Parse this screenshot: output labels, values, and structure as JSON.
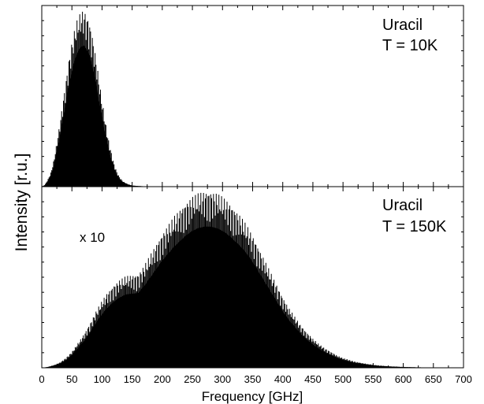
{
  "chart_data": {
    "type": "line",
    "ylabel": "Intensity [r.u.]",
    "xlabel": "Frequency [GHz]",
    "xlim": [
      0,
      700
    ],
    "xticks": [
      0,
      50,
      100,
      150,
      200,
      250,
      300,
      350,
      400,
      450,
      500,
      550,
      600,
      650,
      700
    ],
    "panels": [
      {
        "name": "top",
        "label_line1": "Uracil",
        "label_line2": "T = 10K",
        "annotation": "",
        "ylim": [
          0,
          1.0
        ],
        "series": [
          {
            "x": [
              0,
              5,
              10,
              15,
              20,
              25,
              30,
              35,
              40,
              45,
              50,
              55,
              60,
              65,
              70,
              75,
              80,
              85,
              90,
              95,
              100,
              105,
              110,
              115,
              120,
              125,
              130,
              135,
              140,
              145,
              150,
              160,
              170,
              180,
              190,
              200,
              700
            ],
            "y": [
              0.0,
              0.01,
              0.04,
              0.08,
              0.15,
              0.25,
              0.36,
              0.48,
              0.6,
              0.72,
              0.82,
              0.9,
              0.96,
              0.99,
              1.0,
              0.97,
              0.92,
              0.84,
              0.73,
              0.61,
              0.49,
              0.38,
              0.28,
              0.2,
              0.13,
              0.08,
              0.05,
              0.03,
              0.02,
              0.012,
              0.007,
              0.004,
              0.002,
              0.001,
              0.0005,
              0.0,
              0.0
            ]
          }
        ]
      },
      {
        "name": "bottom",
        "label_line1": "Uracil",
        "label_line2": "T = 150K",
        "annotation": "x 10",
        "ylim": [
          0,
          1.0
        ],
        "series": [
          {
            "x": [
              0,
              10,
              20,
              30,
              40,
              50,
              60,
              70,
              80,
              90,
              100,
              110,
              120,
              130,
              140,
              150,
              160,
              170,
              180,
              190,
              200,
              210,
              220,
              230,
              240,
              250,
              260,
              270,
              280,
              290,
              300,
              310,
              320,
              330,
              340,
              350,
              360,
              370,
              380,
              390,
              400,
              410,
              420,
              430,
              440,
              450,
              460,
              470,
              480,
              490,
              500,
              520,
              540,
              560,
              580,
              600,
              620,
              640,
              660,
              680,
              700
            ],
            "y": [
              0.0,
              0.005,
              0.015,
              0.03,
              0.055,
              0.09,
              0.14,
              0.19,
              0.25,
              0.32,
              0.38,
              0.43,
              0.47,
              0.5,
              0.52,
              0.525,
              0.53,
              0.58,
              0.64,
              0.7,
              0.76,
              0.81,
              0.86,
              0.9,
              0.94,
              0.97,
              0.99,
              1.0,
              1.0,
              0.99,
              0.97,
              0.94,
              0.9,
              0.86,
              0.81,
              0.75,
              0.68,
              0.61,
              0.54,
              0.47,
              0.4,
              0.34,
              0.29,
              0.24,
              0.2,
              0.165,
              0.135,
              0.11,
              0.09,
              0.07,
              0.055,
              0.035,
              0.022,
              0.013,
              0.008,
              0.005,
              0.003,
              0.002,
              0.001,
              0.0005,
              0.0
            ]
          }
        ]
      }
    ]
  }
}
